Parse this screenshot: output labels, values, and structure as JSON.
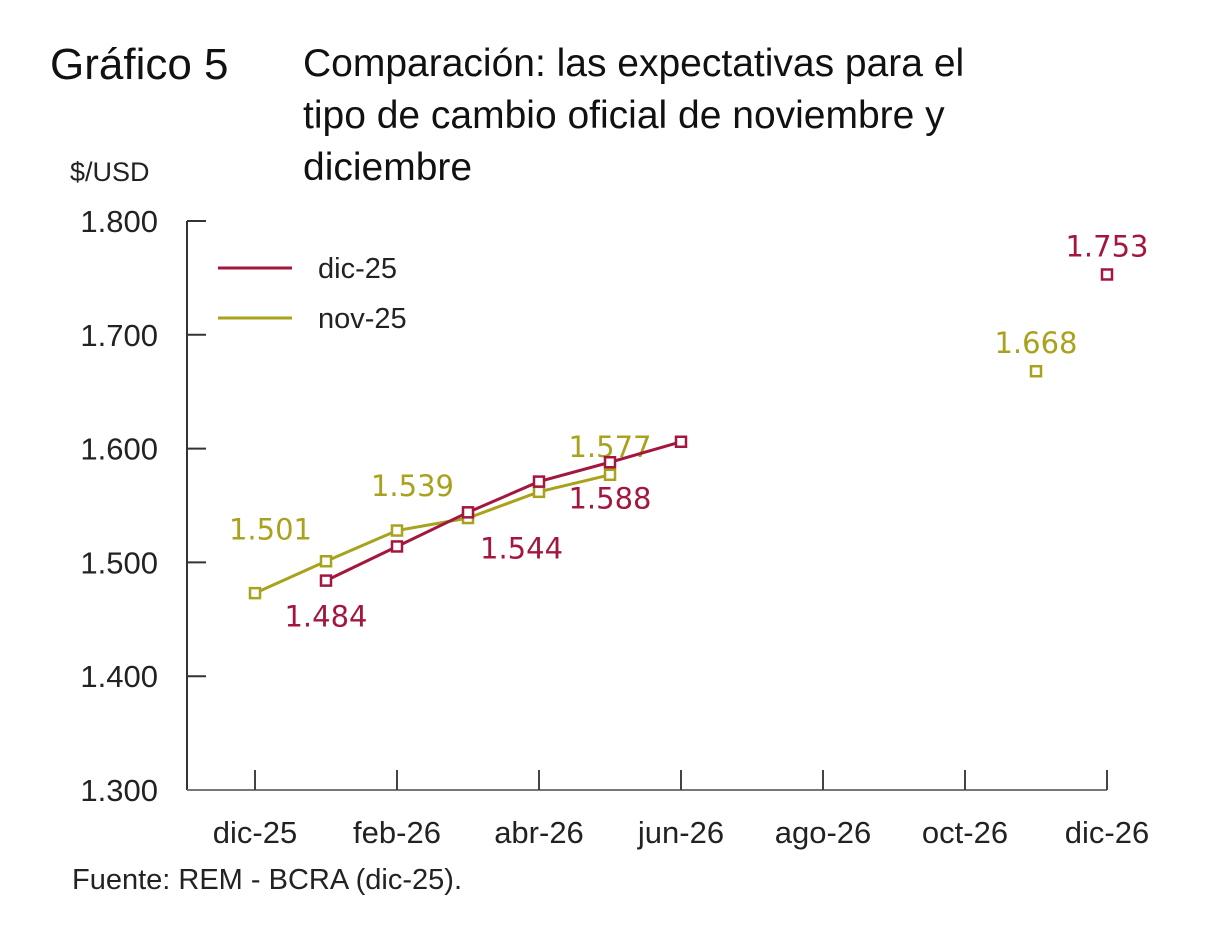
{
  "figure": {
    "label": "Gráfico 5",
    "title": "Comparación: las expectativas para el tipo de cambio oficial de noviembre y diciembre",
    "y_unit": "$/USD",
    "source": "Fuente: REM - BCRA (dic-25)."
  },
  "chart_data": {
    "type": "line",
    "title": "Comparación: las expectativas para el tipo de cambio oficial de noviembre y diciembre",
    "xlabel": "",
    "ylabel": "$/USD",
    "ylim": [
      1300,
      1800
    ],
    "yticks": [
      1300,
      1400,
      1500,
      1600,
      1700,
      1800
    ],
    "ytick_labels": [
      "1.300",
      "1.400",
      "1.500",
      "1.600",
      "1.700",
      "1.800"
    ],
    "x": [
      "dic-25",
      "ene-26",
      "feb-26",
      "mar-26",
      "abr-26",
      "may-26",
      "jun-26",
      "jul-26",
      "ago-26",
      "sep-26",
      "oct-26",
      "nov-26",
      "dic-26"
    ],
    "xtick_labels": [
      "dic-25",
      "feb-26",
      "abr-26",
      "jun-26",
      "ago-26",
      "oct-26",
      "dic-26"
    ],
    "grid": false,
    "legend": {
      "position": "top-left",
      "entries": [
        "dic-25",
        "nov-25"
      ]
    },
    "series": [
      {
        "name": "dic-25",
        "color": "#a3173f",
        "values": [
          null,
          1484,
          1514,
          1544,
          1571,
          1588,
          1606,
          null,
          null,
          null,
          null,
          null,
          1753
        ],
        "labels": [
          {
            "x": "ene-26",
            "value": 1484,
            "text": "1.484",
            "pos": "below"
          },
          {
            "x": "mar-26",
            "value": 1544,
            "text": "1.544",
            "pos": "below-right"
          },
          {
            "x": "may-26",
            "value": 1588,
            "text": "1.588",
            "pos": "below"
          },
          {
            "x": "dic-26",
            "value": 1753,
            "text": "1.753",
            "pos": "above"
          }
        ]
      },
      {
        "name": "nov-25",
        "color": "#a8a21c",
        "values": [
          1473,
          1501,
          1528,
          1539,
          1562,
          1577,
          null,
          null,
          null,
          null,
          null,
          1668,
          null
        ],
        "labels": [
          {
            "x": "ene-26",
            "value": 1501,
            "text": "1.501",
            "pos": "above-left"
          },
          {
            "x": "mar-26",
            "value": 1539,
            "text": "1.539",
            "pos": "above-left"
          },
          {
            "x": "may-26",
            "value": 1577,
            "text": "1.577",
            "pos": "above"
          },
          {
            "x": "nov-26",
            "value": 1668,
            "text": "1.668",
            "pos": "above"
          }
        ]
      }
    ]
  }
}
